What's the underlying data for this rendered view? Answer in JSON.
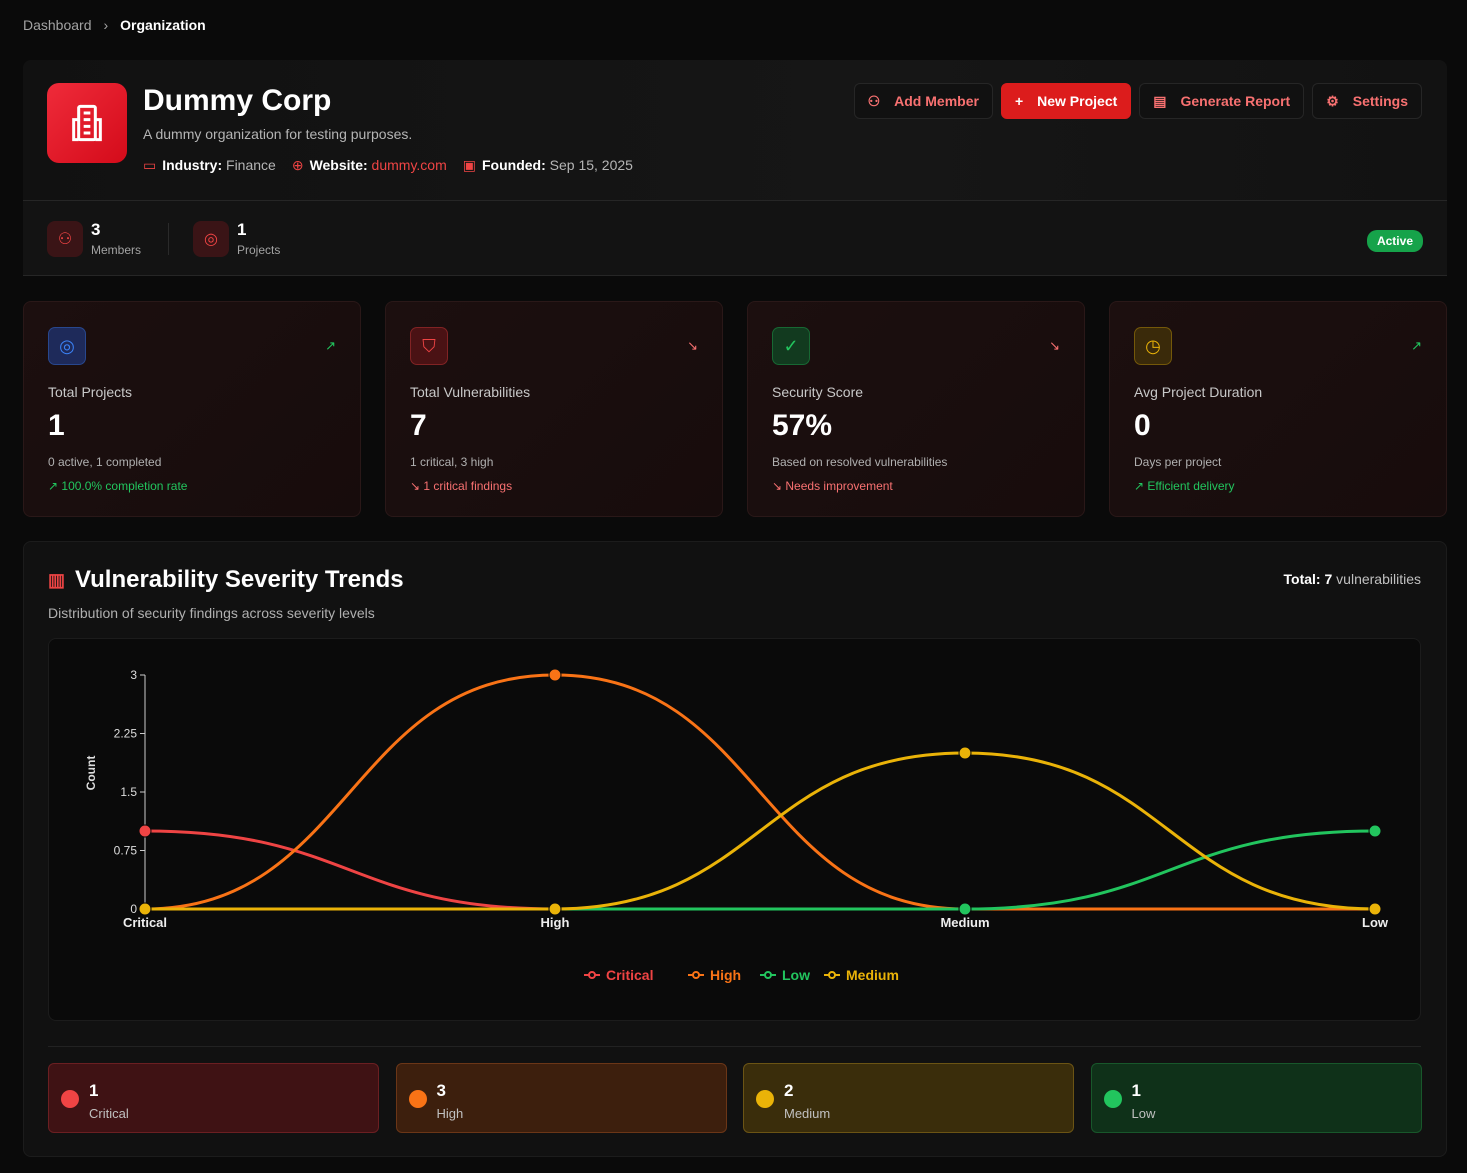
{
  "breadcrumb": {
    "items": [
      "Dashboard",
      "Organization"
    ]
  },
  "org": {
    "name": "Dummy Corp",
    "description": "A dummy organization for testing purposes.",
    "industry_label": "Industry:",
    "industry": "Finance",
    "website_label": "Website:",
    "website": "dummy.com",
    "founded_label": "Founded:",
    "founded": "Sep 15, 2025"
  },
  "actions": {
    "add_member": "Add Member",
    "new_project": "New Project",
    "generate_report": "Generate Report",
    "settings": "Settings"
  },
  "stats": {
    "members_value": "3",
    "members_label": "Members",
    "projects_value": "1",
    "projects_label": "Projects",
    "status": "Active"
  },
  "cards": [
    {
      "label": "Total Projects",
      "value": "1",
      "sub": "0 active, 1 completed",
      "foot": "100.0% completion rate",
      "trend": "up",
      "icon": "target-icon",
      "color": "#22c55e"
    },
    {
      "label": "Total Vulnerabilities",
      "value": "7",
      "sub": "1 critical, 3 high",
      "foot": "1 critical findings",
      "trend": "down",
      "icon": "shield-icon",
      "color": "#f87171"
    },
    {
      "label": "Security Score",
      "value": "57%",
      "sub": "Based on resolved vulnerabilities",
      "foot": "Needs improvement",
      "trend": "down",
      "icon": "check-circle-icon",
      "color": "#f87171"
    },
    {
      "label": "Avg Project Duration",
      "value": "0",
      "sub": "Days per project",
      "foot": "Efficient delivery",
      "trend": "up",
      "icon": "clock-icon",
      "color": "#22c55e"
    }
  ],
  "trends": {
    "title": "Vulnerability Severity Trends",
    "subtitle": "Distribution of security findings across severity levels",
    "total_label": "Total:",
    "total_value": "7",
    "total_suffix": "vulnerabilities"
  },
  "chart_data": {
    "type": "line",
    "categories": [
      "Critical",
      "High",
      "Medium",
      "Low"
    ],
    "ylabel": "Count",
    "ylim": [
      0,
      3
    ],
    "yticks": [
      "0",
      "0.75",
      "1.5",
      "2.25",
      "3"
    ],
    "legend": "bottom",
    "series": [
      {
        "name": "Critical",
        "color": "#ef4444",
        "values": [
          1,
          0,
          0,
          0
        ]
      },
      {
        "name": "High",
        "color": "#f97316",
        "values": [
          0,
          3,
          0,
          0
        ]
      },
      {
        "name": "Low",
        "color": "#22c55e",
        "values": [
          0,
          0,
          0,
          1
        ]
      },
      {
        "name": "Medium",
        "color": "#eab308",
        "values": [
          0,
          0,
          2,
          0
        ]
      }
    ]
  },
  "severity": [
    {
      "value": "1",
      "label": "Critical",
      "color": "#ef4444",
      "bg": "#3f1214",
      "border": "#6b1f22"
    },
    {
      "value": "3",
      "label": "High",
      "color": "#f97316",
      "bg": "#3d1f0d",
      "border": "#6b3617"
    },
    {
      "value": "2",
      "label": "Medium",
      "color": "#eab308",
      "bg": "#3a2d0b",
      "border": "#6b5414"
    },
    {
      "value": "1",
      "label": "Low",
      "color": "#22c55e",
      "bg": "#0f3119",
      "border": "#18572b"
    }
  ]
}
